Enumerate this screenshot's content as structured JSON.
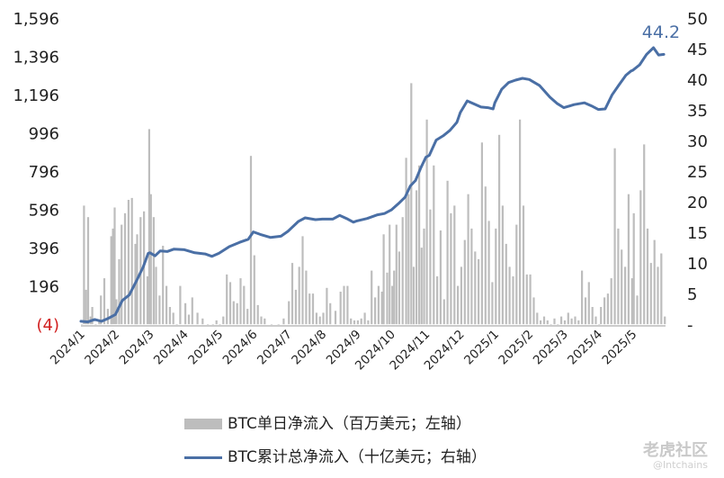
{
  "chart_data": {
    "type": "bar+line",
    "x_ticks": [
      "2024/1",
      "2024/2",
      "2024/3",
      "2024/4",
      "2024/5",
      "2024/6",
      "2024/7",
      "2024/8",
      "2024/9",
      "2024/10",
      "2024/11",
      "2024/12",
      "2025/1",
      "2025/2",
      "2025/3",
      "2025/4",
      "2025/5"
    ],
    "y_left": {
      "ticks": [
        "1,596",
        "1,396",
        "1,196",
        "996",
        "796",
        "596",
        "396",
        "196",
        "(4)"
      ],
      "range": [
        -4,
        1596
      ]
    },
    "y_right": {
      "ticks": [
        "50",
        "45",
        "40",
        "35",
        "30",
        "25",
        "20",
        "15",
        "10",
        "5",
        "-"
      ],
      "range": [
        0,
        50
      ]
    },
    "end_annotation": "44.2",
    "series": [
      {
        "name": "BTC单日净流入（百万美元；左轴）",
        "type": "bar",
        "axis": "left",
        "color": "#bdbdbd",
        "points": [
          [
            "2024/1",
            0
          ],
          [
            "2024/1.06",
            620
          ],
          [
            "2024/1.12",
            180
          ],
          [
            "2024/1.18",
            560
          ],
          [
            "2024/1.25",
            40
          ],
          [
            "2024/1.3",
            90
          ],
          [
            "2024/1.4",
            0
          ],
          [
            "2024/1.5",
            20
          ],
          [
            "2024/1.55",
            150
          ],
          [
            "2024/1.65",
            240
          ],
          [
            "2024/1.75",
            80
          ],
          [
            "2024/1.85",
            460
          ],
          [
            "2024/1.9",
            500
          ],
          [
            "2024/1.95",
            610
          ],
          [
            "2024/2",
            130
          ],
          [
            "2024/2.08",
            340
          ],
          [
            "2024/2.15",
            520
          ],
          [
            "2024/2.25",
            580
          ],
          [
            "2024/2.35",
            650
          ],
          [
            "2024/2.45",
            660
          ],
          [
            "2024/2.55",
            420
          ],
          [
            "2024/2.6",
            470
          ],
          [
            "2024/2.7",
            560
          ],
          [
            "2024/2.8",
            590
          ],
          [
            "2024/2.9",
            250
          ],
          [
            "2024/2.95",
            1020
          ],
          [
            "2024/3",
            680
          ],
          [
            "2024/3.08",
            560
          ],
          [
            "2024/3.15",
            300
          ],
          [
            "2024/3.25",
            150
          ],
          [
            "2024/3.35",
            410
          ],
          [
            "2024/3.45",
            200
          ],
          [
            "2024/3.55",
            90
          ],
          [
            "2024/3.65",
            60
          ],
          [
            "2024/3.75",
            0
          ],
          [
            "2024/3.85",
            200
          ],
          [
            "2024/4",
            110
          ],
          [
            "2024/4.1",
            50
          ],
          [
            "2024/4.2",
            140
          ],
          [
            "2024/4.35",
            60
          ],
          [
            "2024/4.5",
            30
          ],
          [
            "2024/4.65",
            0
          ],
          [
            "2024/4.8",
            0
          ],
          [
            "2024/4.9",
            20
          ],
          [
            "2024/5",
            0
          ],
          [
            "2024/5.1",
            40
          ],
          [
            "2024/5.2",
            260
          ],
          [
            "2024/5.3",
            220
          ],
          [
            "2024/5.4",
            120
          ],
          [
            "2024/5.5",
            110
          ],
          [
            "2024/5.6",
            240
          ],
          [
            "2024/5.7",
            200
          ],
          [
            "2024/5.8",
            80
          ],
          [
            "2024/5.9",
            880
          ],
          [
            "2024/6",
            360
          ],
          [
            "2024/6.1",
            100
          ],
          [
            "2024/6.2",
            40
          ],
          [
            "2024/6.3",
            30
          ],
          [
            "2024/6.5",
            0
          ],
          [
            "2024/6.7",
            0
          ],
          [
            "2024/6.85",
            30
          ],
          [
            "2024/7",
            120
          ],
          [
            "2024/7.1",
            320
          ],
          [
            "2024/7.2",
            180
          ],
          [
            "2024/7.3",
            300
          ],
          [
            "2024/7.4",
            460
          ],
          [
            "2024/7.5",
            280
          ],
          [
            "2024/7.6",
            160
          ],
          [
            "2024/7.7",
            160
          ],
          [
            "2024/7.8",
            60
          ],
          [
            "2024/7.9",
            40
          ],
          [
            "2024/8",
            60
          ],
          [
            "2024/8.1",
            190
          ],
          [
            "2024/8.2",
            110
          ],
          [
            "2024/8.35",
            70
          ],
          [
            "2024/8.5",
            170
          ],
          [
            "2024/8.6",
            200
          ],
          [
            "2024/8.7",
            200
          ],
          [
            "2024/8.8",
            30
          ],
          [
            "2024/8.9",
            20
          ],
          [
            "2024/9",
            20
          ],
          [
            "2024/9.1",
            30
          ],
          [
            "2024/9.2",
            60
          ],
          [
            "2024/9.3",
            20
          ],
          [
            "2024/9.4",
            280
          ],
          [
            "2024/9.5",
            140
          ],
          [
            "2024/9.6",
            200
          ],
          [
            "2024/9.7",
            170
          ],
          [
            "2024/9.75",
            470
          ],
          [
            "2024/9.85",
            270
          ],
          [
            "2024/9.92",
            520
          ],
          [
            "2024/10",
            200
          ],
          [
            "2024/10.05",
            280
          ],
          [
            "2024/10.12",
            520
          ],
          [
            "2024/10.2",
            380
          ],
          [
            "2024/10.3",
            560
          ],
          [
            "2024/10.4",
            870
          ],
          [
            "2024/10.47",
            680
          ],
          [
            "2024/10.55",
            1260
          ],
          [
            "2024/10.62",
            300
          ],
          [
            "2024/10.7",
            700
          ],
          [
            "2024/10.78",
            830
          ],
          [
            "2024/10.85",
            400
          ],
          [
            "2024/10.92",
            500
          ],
          [
            "2024/11",
            1070
          ],
          [
            "2024/11.1",
            600
          ],
          [
            "2024/11.2",
            830
          ],
          [
            "2024/11.3",
            250
          ],
          [
            "2024/11.4",
            490
          ],
          [
            "2024/11.5",
            130
          ],
          [
            "2024/11.6",
            750
          ],
          [
            "2024/11.7",
            580
          ],
          [
            "2024/11.8",
            620
          ],
          [
            "2024/11.9",
            200
          ],
          [
            "2024/12",
            300
          ],
          [
            "2024/12.1",
            440
          ],
          [
            "2024/12.2",
            680
          ],
          [
            "2024/12.3",
            500
          ],
          [
            "2024/12.4",
            380
          ],
          [
            "2024/12.5",
            340
          ],
          [
            "2024/12.6",
            950
          ],
          [
            "2024/12.7",
            720
          ],
          [
            "2024/12.8",
            540
          ],
          [
            "2024/12.9",
            220
          ],
          [
            "2025/1",
            500
          ],
          [
            "2025/1.1",
            990
          ],
          [
            "2025/1.2",
            620
          ],
          [
            "2025/1.3",
            420
          ],
          [
            "2025/1.4",
            300
          ],
          [
            "2025/1.5",
            250
          ],
          [
            "2025/1.6",
            520
          ],
          [
            "2025/1.7",
            1070
          ],
          [
            "2025/1.8",
            620
          ],
          [
            "2025/1.9",
            260
          ],
          [
            "2025/2",
            260
          ],
          [
            "2025/2.1",
            140
          ],
          [
            "2025/2.2",
            60
          ],
          [
            "2025/2.3",
            20
          ],
          [
            "2025/2.4",
            40
          ],
          [
            "2025/2.5",
            20
          ],
          [
            "2025/2.6",
            0
          ],
          [
            "2025/2.7",
            30
          ],
          [
            "2025/2.8",
            0
          ],
          [
            "2025/2.9",
            40
          ],
          [
            "2025/3",
            20
          ],
          [
            "2025/3.1",
            60
          ],
          [
            "2025/3.2",
            30
          ],
          [
            "2025/3.3",
            40
          ],
          [
            "2025/3.4",
            20
          ],
          [
            "2025/3.5",
            280
          ],
          [
            "2025/3.6",
            140
          ],
          [
            "2025/3.7",
            220
          ],
          [
            "2025/3.8",
            90
          ],
          [
            "2025/3.9",
            40
          ],
          [
            "2025/4",
            0
          ],
          [
            "2025/4.05",
            90
          ],
          [
            "2025/4.15",
            140
          ],
          [
            "2025/4.25",
            160
          ],
          [
            "2025/4.35",
            240
          ],
          [
            "2025/4.45",
            920
          ],
          [
            "2025/4.55",
            500
          ],
          [
            "2025/4.65",
            390
          ],
          [
            "2025/4.75",
            300
          ],
          [
            "2025/4.85",
            680
          ],
          [
            "2025/4.95",
            240
          ],
          [
            "2025/5",
            580
          ],
          [
            "2025/5.1",
            150
          ],
          [
            "2025/5.2",
            700
          ],
          [
            "2025/5.3",
            940
          ],
          [
            "2025/5.4",
            500
          ],
          [
            "2025/5.5",
            320
          ],
          [
            "2025/5.6",
            440
          ],
          [
            "2025/5.7",
            300
          ],
          [
            "2025/5.8",
            370
          ],
          [
            "2025/5.9",
            40
          ]
        ]
      },
      {
        "name": "BTC累计总净流入（十亿美元；右轴）",
        "type": "line",
        "axis": "right",
        "color": "#4a6fa5",
        "points": [
          [
            "2024/1",
            0.6
          ],
          [
            "2024/1.2",
            0.5
          ],
          [
            "2024/1.4",
            0.9
          ],
          [
            "2024/1.6",
            0.6
          ],
          [
            "2024/1.8",
            1.1
          ],
          [
            "2024/2",
            1.7
          ],
          [
            "2024/2.2",
            4.0
          ],
          [
            "2024/2.4",
            4.9
          ],
          [
            "2024/2.6",
            7.1
          ],
          [
            "2024/2.8",
            9.4
          ],
          [
            "2024/2.95",
            11.7
          ],
          [
            "2024/3",
            11.8
          ],
          [
            "2024/3.15",
            11.3
          ],
          [
            "2024/3.3",
            12.1
          ],
          [
            "2024/3.5",
            12.0
          ],
          [
            "2024/3.7",
            12.4
          ],
          [
            "2024/4",
            12.3
          ],
          [
            "2024/4.3",
            11.8
          ],
          [
            "2024/4.6",
            11.6
          ],
          [
            "2024/4.8",
            11.2
          ],
          [
            "2024/5",
            11.7
          ],
          [
            "2024/5.3",
            12.8
          ],
          [
            "2024/5.6",
            13.5
          ],
          [
            "2024/5.85",
            14.0
          ],
          [
            "2024/6",
            15.2
          ],
          [
            "2024/6.2",
            14.8
          ],
          [
            "2024/6.5",
            14.3
          ],
          [
            "2024/6.8",
            14.5
          ],
          [
            "2024/7",
            15.3
          ],
          [
            "2024/7.3",
            16.9
          ],
          [
            "2024/7.5",
            17.5
          ],
          [
            "2024/7.8",
            17.2
          ],
          [
            "2024/8",
            17.3
          ],
          [
            "2024/8.3",
            17.3
          ],
          [
            "2024/8.5",
            17.9
          ],
          [
            "2024/8.7",
            17.4
          ],
          [
            "2024/8.9",
            16.8
          ],
          [
            "2024/9",
            17.0
          ],
          [
            "2024/9.3",
            17.4
          ],
          [
            "2024/9.6",
            18.0
          ],
          [
            "2024/9.8",
            18.2
          ],
          [
            "2024/10",
            18.8
          ],
          [
            "2024/10.2",
            19.8
          ],
          [
            "2024/10.4",
            20.9
          ],
          [
            "2024/10.55",
            22.7
          ],
          [
            "2024/10.7",
            23.6
          ],
          [
            "2024/10.85",
            25.6
          ],
          [
            "2024/11",
            27.4
          ],
          [
            "2024/11.1",
            27.7
          ],
          [
            "2024/11.3",
            30.2
          ],
          [
            "2024/11.5",
            30.9
          ],
          [
            "2024/11.7",
            31.8
          ],
          [
            "2024/11.9",
            33.1
          ],
          [
            "2024/12",
            34.7
          ],
          [
            "2024/12.2",
            36.6
          ],
          [
            "2024/12.4",
            36.1
          ],
          [
            "2024/12.6",
            35.6
          ],
          [
            "2024/12.8",
            35.5
          ],
          [
            "2024/12.95",
            35.3
          ],
          [
            "2025/1",
            36.3
          ],
          [
            "2025/1.2",
            38.5
          ],
          [
            "2025/1.4",
            39.6
          ],
          [
            "2025/1.6",
            40.0
          ],
          [
            "2025/1.8",
            40.3
          ],
          [
            "2025/2",
            40.1
          ],
          [
            "2025/2.3",
            39.1
          ],
          [
            "2025/2.6",
            37.2
          ],
          [
            "2025/2.8",
            36.2
          ],
          [
            "2025/3",
            35.5
          ],
          [
            "2025/3.3",
            36.0
          ],
          [
            "2025/3.6",
            36.3
          ],
          [
            "2025/3.8",
            35.8
          ],
          [
            "2025/4",
            35.2
          ],
          [
            "2025/4.2",
            35.3
          ],
          [
            "2025/4.4",
            37.6
          ],
          [
            "2025/4.6",
            39.2
          ],
          [
            "2025/4.8",
            40.8
          ],
          [
            "2025/4.95",
            41.5
          ],
          [
            "2025/5",
            41.6
          ],
          [
            "2025/5.2",
            42.5
          ],
          [
            "2025/5.4",
            44.2
          ],
          [
            "2025/5.6",
            45.3
          ],
          [
            "2025/5.75",
            44.1
          ],
          [
            "2025/5.9",
            44.2
          ]
        ]
      }
    ],
    "grid": false,
    "legend_position": "bottom"
  },
  "legend": {
    "bar_label": "BTC单日净流入（百万美元；左轴）",
    "line_label": "BTC累计总净流入（十亿美元；右轴）"
  },
  "watermark": {
    "text": "老虎社区",
    "sub": "@Intchains"
  }
}
